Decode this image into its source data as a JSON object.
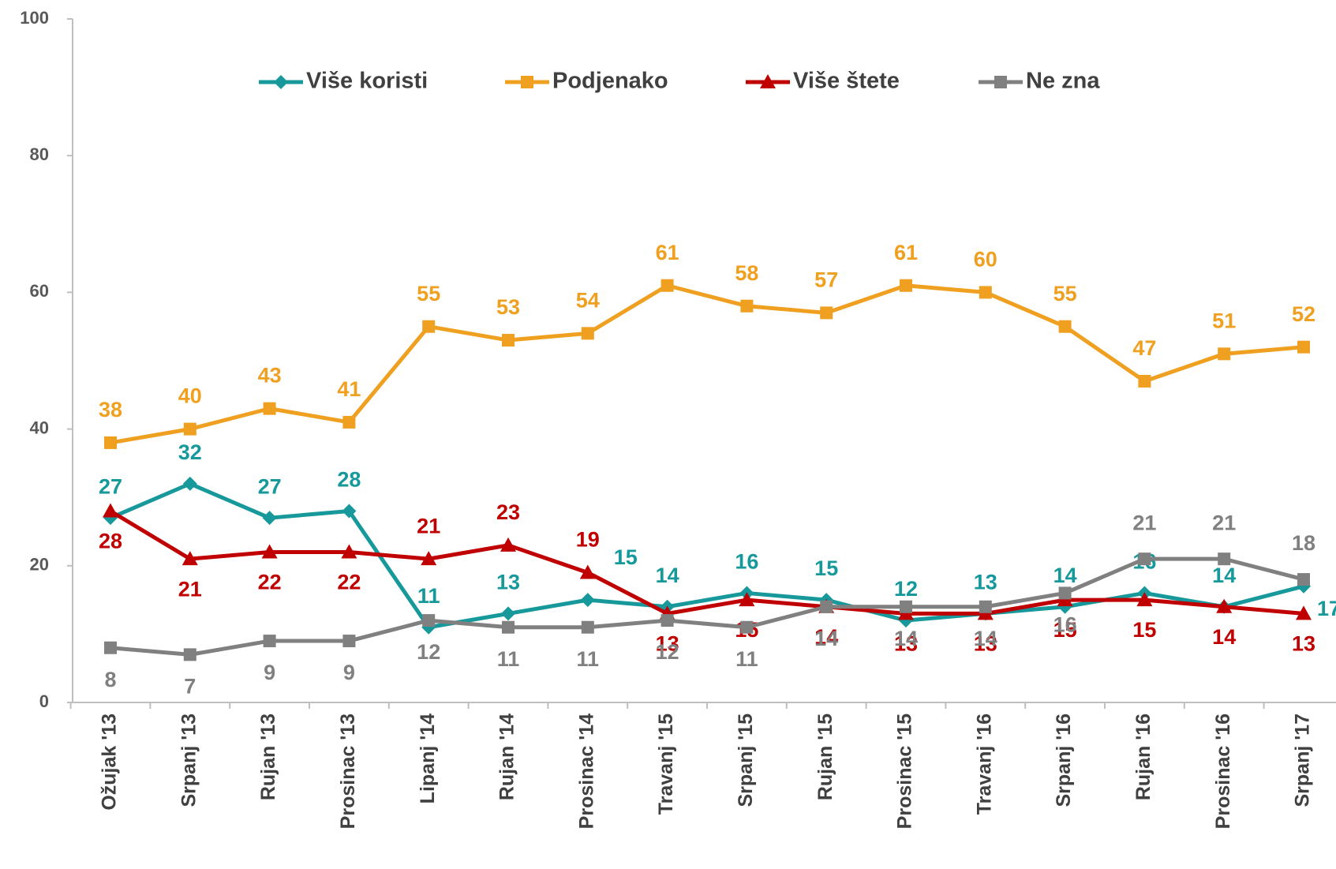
{
  "chart_data": {
    "type": "line",
    "categories": [
      "Ožujak '13",
      "Srpanj '13",
      "Rujan '13",
      "Prosinac '13",
      "Lipanj '14",
      "Rujan '14",
      "Prosinac '14",
      "Travanj '15",
      "Srpanj '15",
      "Rujan '15",
      "Prosinac '15",
      "Travanj '16",
      "Srpanj '16",
      "Rujan '16",
      "Prosinac '16",
      "Srpanj '17"
    ],
    "series": [
      {
        "name": "Više koristi",
        "color": "#17999b",
        "marker": "diamond",
        "values": [
          27,
          32,
          27,
          28,
          11,
          13,
          15,
          14,
          16,
          15,
          12,
          13,
          14,
          16,
          14,
          17
        ]
      },
      {
        "name": "Podjenako",
        "color": "#f0a020",
        "marker": "square",
        "values": [
          38,
          40,
          43,
          41,
          55,
          53,
          54,
          61,
          58,
          57,
          61,
          60,
          55,
          47,
          51,
          52
        ]
      },
      {
        "name": "Više štete",
        "color": "#c00000",
        "marker": "triangle",
        "values": [
          28,
          21,
          22,
          22,
          21,
          23,
          19,
          13,
          15,
          14,
          13,
          13,
          15,
          15,
          14,
          13
        ]
      },
      {
        "name": "Ne zna",
        "color": "#808080",
        "marker": "square",
        "values": [
          8,
          7,
          9,
          9,
          12,
          11,
          11,
          12,
          11,
          14,
          14,
          14,
          16,
          21,
          21,
          18
        ]
      }
    ],
    "ylim": [
      0,
      100
    ],
    "yticks": [
      0,
      20,
      40,
      60,
      80,
      100
    ],
    "grid": false,
    "legend": "top"
  }
}
